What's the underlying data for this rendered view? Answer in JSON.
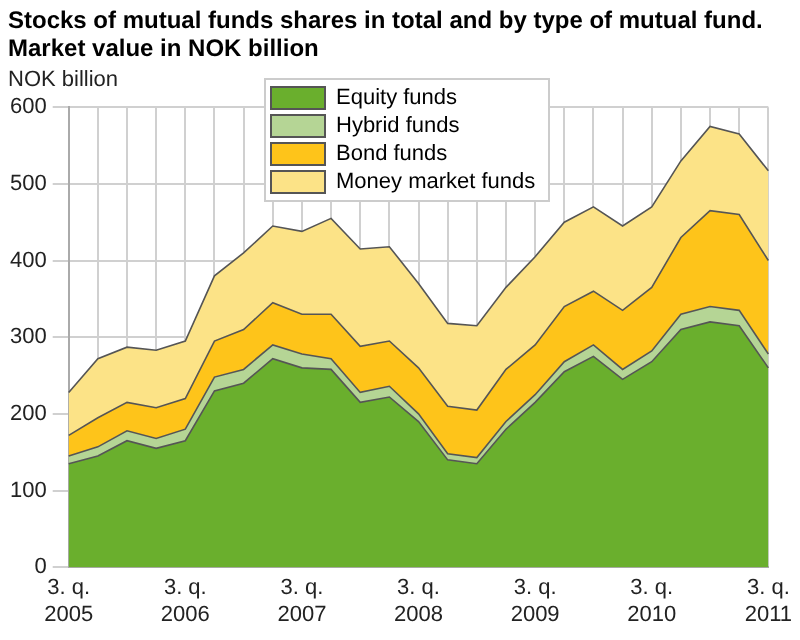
{
  "chart_data": {
    "type": "area",
    "title": "Stocks of mutual funds shares in total and by type of mutual fund. Market value in NOK billion",
    "ylabel": "NOK billion",
    "categories": [
      "3. q. 2005",
      null,
      null,
      null,
      "3. q. 2006",
      null,
      null,
      null,
      "3. q. 2007",
      null,
      null,
      null,
      "3. q. 2008",
      null,
      null,
      null,
      "3. q. 2009",
      null,
      null,
      null,
      "3. q. 2010",
      null,
      null,
      null,
      "3. q. 2011"
    ],
    "stacked": true,
    "series": [
      {
        "name": "Equity funds",
        "color": "#6aaf2d",
        "values": [
          135,
          145,
          165,
          155,
          165,
          230,
          240,
          272,
          260,
          258,
          215,
          222,
          190,
          140,
          135,
          180,
          215,
          255,
          275,
          245,
          268,
          310,
          320,
          315,
          260
        ]
      },
      {
        "name": "Hybrid funds",
        "color": "#b5d595",
        "values": [
          10,
          12,
          13,
          13,
          15,
          18,
          18,
          18,
          18,
          14,
          13,
          14,
          10,
          8,
          8,
          10,
          10,
          13,
          15,
          13,
          14,
          20,
          20,
          20,
          18
        ]
      },
      {
        "name": "Bond funds",
        "color": "#fec41a",
        "values": [
          27,
          38,
          37,
          40,
          40,
          47,
          52,
          55,
          52,
          58,
          60,
          59,
          60,
          62,
          62,
          68,
          65,
          72,
          70,
          77,
          83,
          100,
          125,
          125,
          122
        ]
      },
      {
        "name": "Money market funds",
        "color": "#fce387",
        "values": [
          56,
          77,
          72,
          75,
          75,
          85,
          100,
          100,
          108,
          125,
          127,
          123,
          110,
          108,
          110,
          107,
          115,
          110,
          110,
          110,
          105,
          100,
          110,
          105,
          117
        ]
      }
    ],
    "ylim": [
      0,
      600
    ],
    "yticks": [
      0,
      100,
      200,
      300,
      400,
      500,
      600
    ],
    "grid": true,
    "legend": "top"
  }
}
